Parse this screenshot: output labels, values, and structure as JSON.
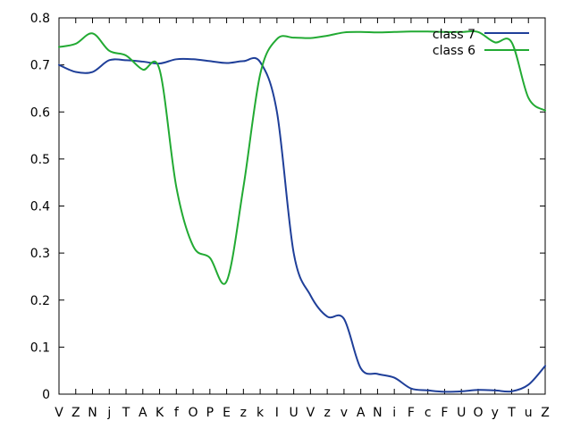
{
  "chart_data": {
    "type": "line",
    "title": "",
    "xlabel": "",
    "ylabel": "",
    "categories": [
      "V",
      "Z",
      "N",
      "j",
      "T",
      "A",
      "K",
      "f",
      "O",
      "P",
      "E",
      "z",
      "k",
      "I",
      "U",
      "V",
      "z",
      "v",
      "A",
      "N",
      "i",
      "F",
      "c",
      "F",
      "U",
      "O",
      "y",
      "T",
      "u",
      "Z"
    ],
    "ylim": [
      0,
      0.8
    ],
    "yticks": [
      "0",
      "0.1",
      "0.2",
      "0.3",
      "0.4",
      "0.5",
      "0.6",
      "0.7",
      "0.8"
    ],
    "grid": false,
    "legend_position": "top-right",
    "series": [
      {
        "name": "class 7",
        "color": "#1f3f99",
        "values": [
          0.7,
          0.685,
          0.685,
          0.71,
          0.71,
          0.707,
          0.703,
          0.712,
          0.712,
          0.708,
          0.704,
          0.708,
          0.706,
          0.6,
          0.3,
          0.21,
          0.165,
          0.16,
          0.055,
          0.043,
          0.035,
          0.012,
          0.008,
          0.005,
          0.006,
          0.009,
          0.008,
          0.006,
          0.02,
          0.06
        ]
      },
      {
        "name": "class 6",
        "color": "#22aa33",
        "values": [
          0.738,
          0.745,
          0.767,
          0.73,
          0.72,
          0.69,
          0.69,
          0.44,
          0.315,
          0.29,
          0.24,
          0.44,
          0.68,
          0.755,
          0.758,
          0.757,
          0.762,
          0.769,
          0.77,
          0.769,
          0.77,
          0.771,
          0.771,
          0.77,
          0.77,
          0.77,
          0.748,
          0.748,
          0.63,
          0.603
        ]
      }
    ]
  }
}
